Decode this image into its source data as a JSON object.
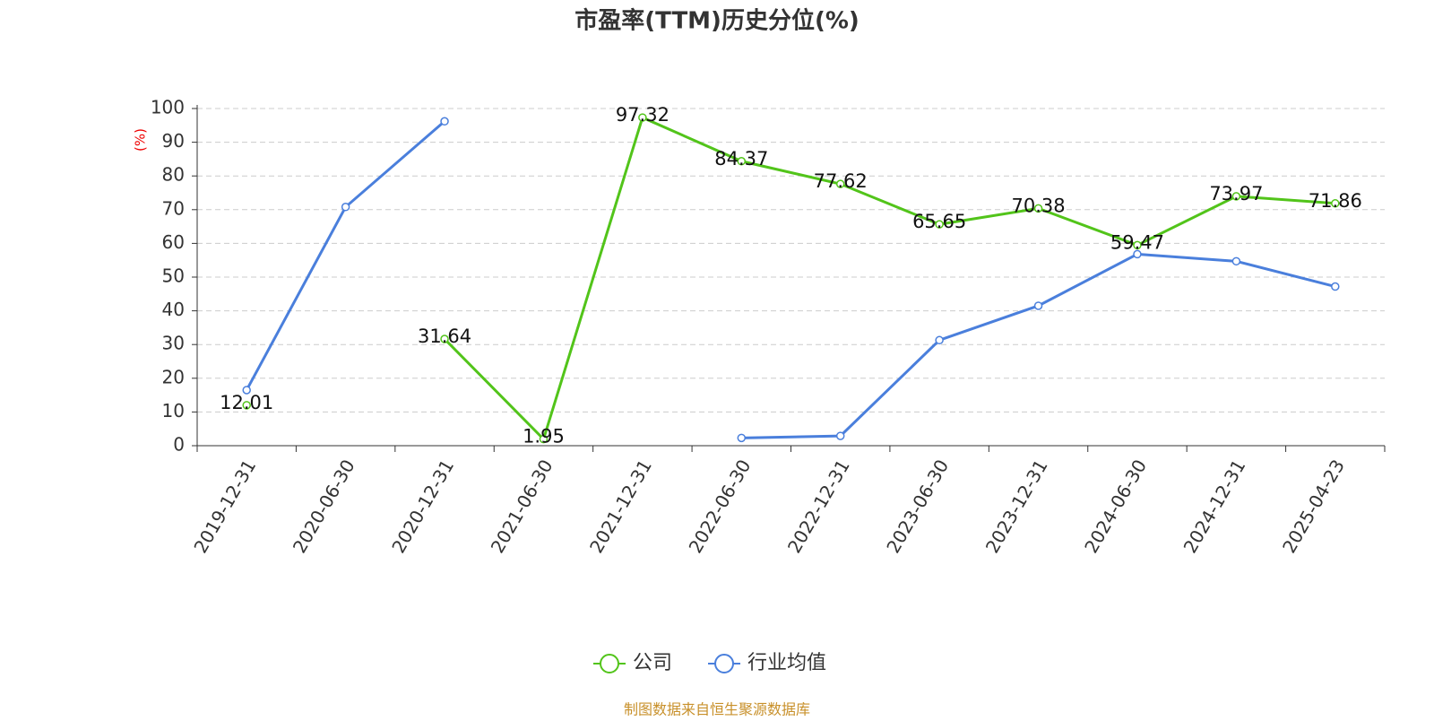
{
  "chart_data": {
    "type": "line",
    "title": "市盈率(TTM)历史分位(%)",
    "y_label": "(%)",
    "footer": "制图数据来自恒生聚源数据库",
    "categories": [
      "2019-12-31",
      "2020-06-30",
      "2020-12-31",
      "2021-06-30",
      "2021-12-31",
      "2022-06-30",
      "2022-12-31",
      "2023-06-30",
      "2023-12-31",
      "2024-06-30",
      "2024-12-31",
      "2025-04-23"
    ],
    "series": [
      {
        "name": "公司",
        "color": "#52c41a",
        "show_labels": true,
        "values": [
          12.01,
          null,
          31.64,
          1.95,
          97.32,
          84.37,
          77.62,
          65.65,
          70.38,
          59.47,
          73.97,
          71.86
        ]
      },
      {
        "name": "行业均值",
        "color": "#4a7fdc",
        "show_labels": false,
        "values": [
          16.5,
          70.8,
          96.2,
          null,
          null,
          2.3,
          2.9,
          31.3,
          41.5,
          56.8,
          54.7,
          47.2
        ]
      }
    ],
    "ylim": [
      0,
      100
    ],
    "yticks": [
      0,
      10,
      20,
      30,
      40,
      50,
      60,
      70,
      80,
      90,
      100
    ],
    "grid": true
  }
}
